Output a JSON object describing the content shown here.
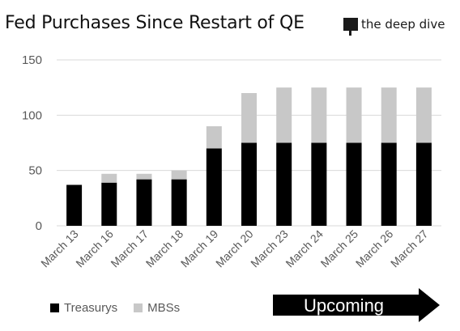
{
  "title": "Fed Purchases Since Restart of QE",
  "logo": {
    "text": "the deep dive",
    "icon": "the-deep-dive-logo-icon"
  },
  "annotation": {
    "label": "Upcoming",
    "icon": "right-arrow-icon"
  },
  "colors": {
    "treasurys": "#000000",
    "mbss": "#c8c8c8",
    "grid": "#d9d9d9",
    "arrow": "#000000"
  },
  "chart_data": {
    "type": "bar",
    "stacked": true,
    "categories": [
      "March 13",
      "March 16",
      "March 17",
      "March 18",
      "March 19",
      "March 20",
      "March 23",
      "March 24",
      "March 25",
      "March 26",
      "March 27"
    ],
    "series": [
      {
        "name": "Treasurys",
        "values": [
          37,
          39,
          42,
          42,
          70,
          75,
          75,
          75,
          75,
          75,
          75
        ]
      },
      {
        "name": "MBSs",
        "values": [
          0,
          8,
          5,
          8,
          20,
          45,
          50,
          50,
          50,
          50,
          50
        ]
      }
    ],
    "yticks": [
      "0",
      "50",
      "100",
      "150"
    ],
    "ylim": [
      0,
      150
    ],
    "grid": true,
    "legend": "bottom-left"
  }
}
